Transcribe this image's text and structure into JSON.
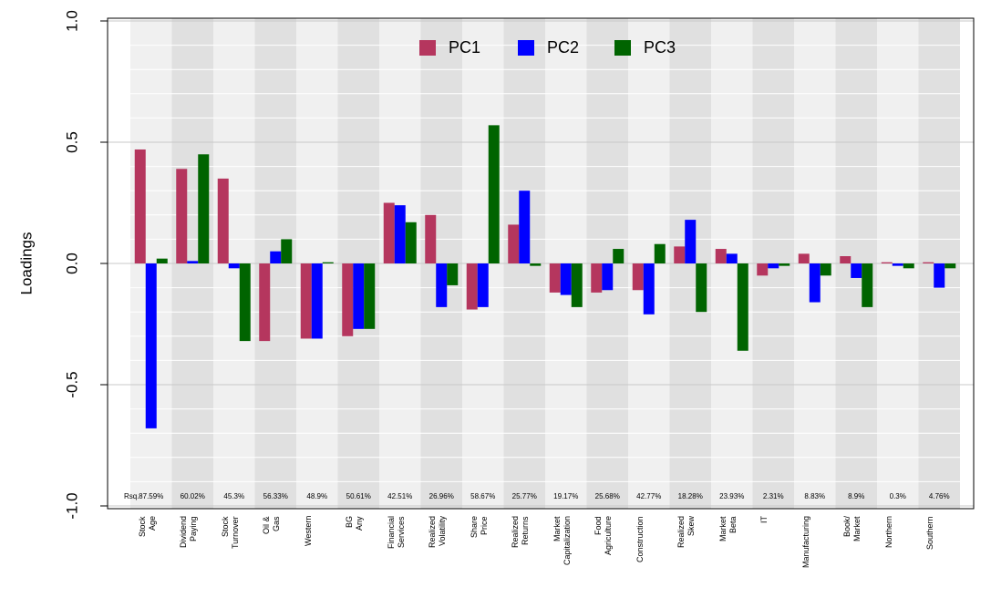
{
  "chart_data": {
    "type": "bar",
    "y_label": "Loadings",
    "categories": [
      "Stock\nAge",
      "Dividend\nPaying",
      "Stock\nTurnover",
      "Oil &\nGas",
      "Western",
      "BG\nAny",
      "Financial\nServices",
      "Realized\nVolatility",
      "Share\nPrice",
      "Realized\nReturns",
      "Market\nCapitalization",
      "Food\nAgriculture",
      "Construction",
      "Realized\nSkew",
      "Market\nBeta",
      "IT",
      "Manufacturing",
      "Book/\nMarket",
      "Northern",
      "Southern"
    ],
    "series": [
      {
        "name": "PC1",
        "color": "#b5365e",
        "values": [
          0.47,
          0.39,
          0.35,
          -0.32,
          -0.31,
          -0.3,
          0.25,
          0.2,
          -0.19,
          0.16,
          -0.12,
          -0.12,
          -0.11,
          0.07,
          0.06,
          -0.05,
          0.04,
          0.03,
          0.005,
          0.005
        ]
      },
      {
        "name": "PC2",
        "color": "#0000ff",
        "values": [
          -0.68,
          0.01,
          -0.02,
          0.05,
          -0.31,
          -0.27,
          0.24,
          -0.18,
          -0.18,
          0.3,
          -0.13,
          -0.11,
          -0.21,
          0.18,
          0.04,
          -0.02,
          -0.16,
          -0.06,
          -0.01,
          -0.1
        ]
      },
      {
        "name": "PC3",
        "color": "#006400",
        "values": [
          0.02,
          0.45,
          -0.32,
          0.1,
          0.005,
          -0.27,
          0.17,
          -0.09,
          0.57,
          -0.01,
          -0.18,
          0.06,
          0.08,
          -0.2,
          -0.36,
          -0.01,
          -0.05,
          -0.18,
          -0.02,
          -0.02
        ]
      }
    ],
    "rsq": {
      "label": "Rsq.",
      "values": [
        87.59,
        60.02,
        45.3,
        56.33,
        48.9,
        50.61,
        42.51,
        26.96,
        58.67,
        25.77,
        19.17,
        25.68,
        42.77,
        18.28,
        23.93,
        2.31,
        8.83,
        8.9,
        0.3,
        4.76
      ],
      "value_labels": [
        "87.59%",
        "60.02%",
        "45.3%",
        "56.33%",
        "48.9%",
        "50.61%",
        "42.51%",
        "26.96%",
        "58.67%",
        "25.77%",
        "19.17%",
        "25.68%",
        "42.77%",
        "18.28%",
        "23.93%",
        "2.31%",
        "8.83%",
        "8.9%",
        "0.3%",
        "4.76%"
      ]
    },
    "ylim": [
      -1,
      1
    ],
    "yticks": [
      {
        "value": -1,
        "label": "-1.0"
      },
      -0.5,
      {
        "value": 0,
        "label": "0.0"
      },
      0.5,
      {
        "value": 1,
        "label": "1.0"
      }
    ],
    "minor_yticks": [
      -0.9,
      -0.8,
      -0.7,
      -0.6,
      -0.4,
      -0.3,
      -0.2,
      -0.1,
      0.1,
      0.2,
      0.3,
      0.4,
      0.6,
      0.7,
      0.8,
      0.9
    ],
    "grid": true,
    "legend": "top"
  }
}
